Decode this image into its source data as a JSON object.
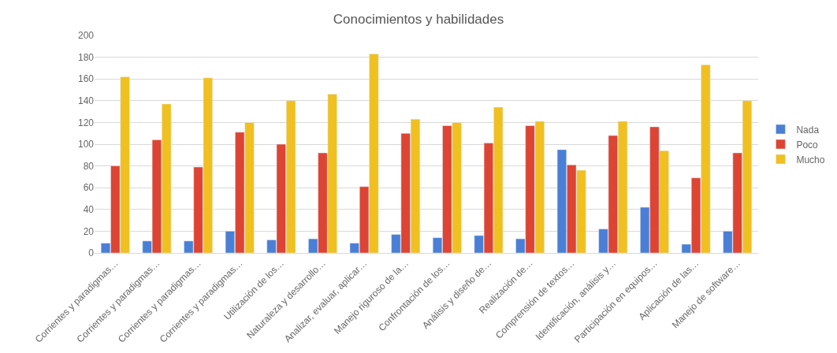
{
  "chart_data": {
    "type": "bar",
    "title": "Conocimientos y habilidades",
    "categories": [
      "Corrientes y paradigmas…",
      "Corrientes y paradigmas…",
      "Corrientes y paradigmas…",
      "Corrientes y paradigmas…",
      "Utilización de los…",
      "Naturaleza y desarrollo…",
      "Analizar, evaluar, aplicar…",
      "Manejo riguroso de la…",
      "Confrontación de los…",
      "Análisis y diseño de…",
      "Realización de…",
      "Comprensión de textos…",
      "Identificación, análisis y…",
      "Participación en equipos…",
      "Aplicación de las…",
      "Manejo de software…"
    ],
    "series": [
      {
        "name": "Nada",
        "color": "#4a7fd6",
        "values": [
          9,
          11,
          11,
          20,
          12,
          13,
          9,
          17,
          14,
          16,
          13,
          95,
          22,
          42,
          8,
          20
        ]
      },
      {
        "name": "Poco",
        "color": "#dd4433",
        "values": [
          80,
          104,
          79,
          111,
          100,
          92,
          61,
          110,
          117,
          101,
          117,
          81,
          108,
          116,
          69,
          92
        ]
      },
      {
        "name": "Mucho",
        "color": "#f0c020",
        "values": [
          162,
          137,
          161,
          120,
          140,
          146,
          183,
          123,
          120,
          134,
          121,
          76,
          121,
          94,
          173,
          140
        ]
      }
    ],
    "ylim": [
      0,
      200
    ],
    "yticks": [
      0,
      20,
      40,
      60,
      80,
      100,
      120,
      140,
      160,
      180,
      200
    ],
    "grid": "y",
    "legend": "right"
  }
}
